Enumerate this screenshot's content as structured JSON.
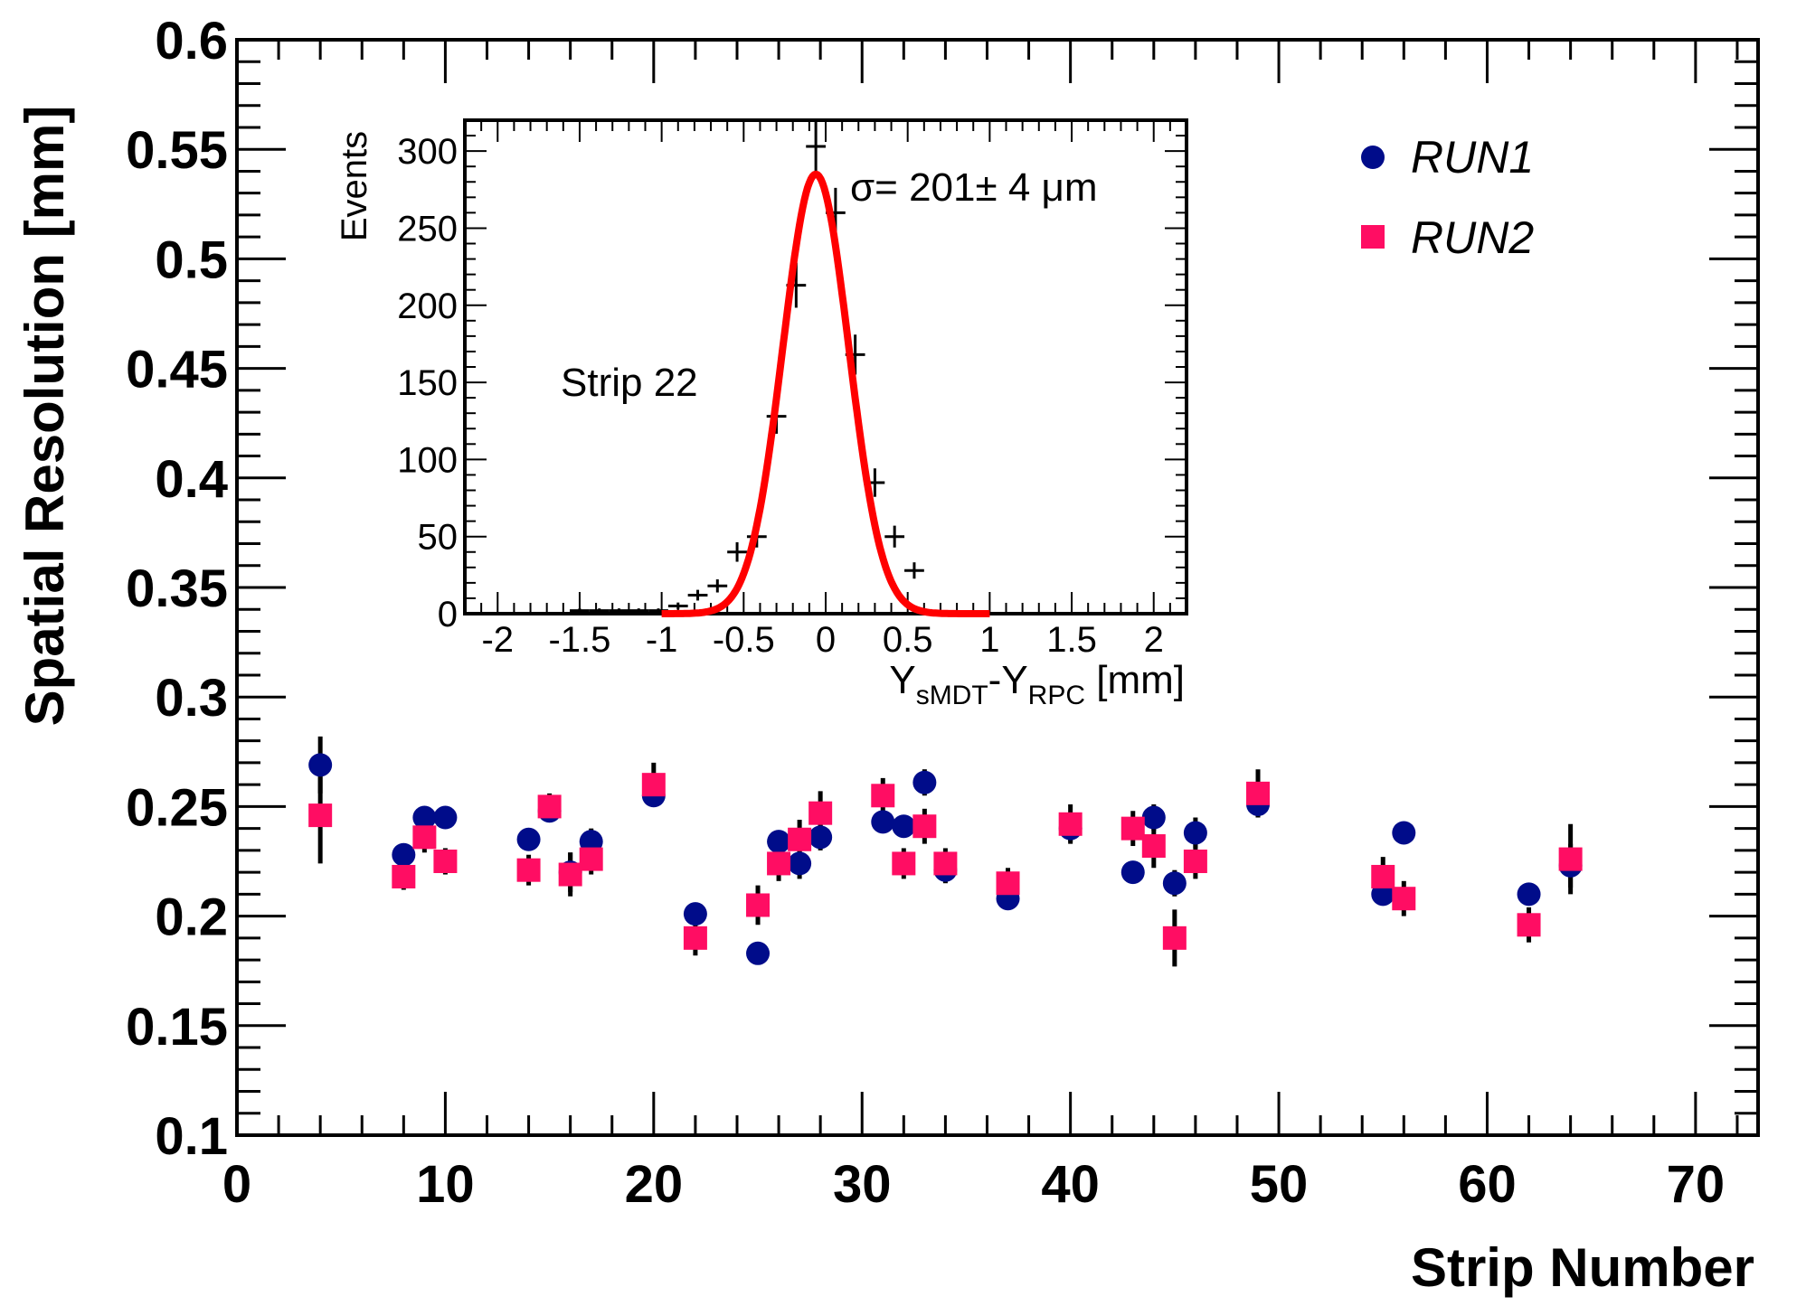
{
  "chart_data": [
    {
      "type": "scatter",
      "xlabel": "Strip Number",
      "ylabel": "Spatial Resolution [mm]",
      "xlim": [
        0,
        73
      ],
      "ylim": [
        0.1,
        0.6
      ],
      "x_ticks": [
        0,
        10,
        20,
        30,
        40,
        50,
        60,
        70
      ],
      "x_tick_labels": [
        "0",
        "10",
        "20",
        "30",
        "40",
        "50",
        "60",
        "70"
      ],
      "y_ticks": [
        0.1,
        0.15,
        0.2,
        0.25,
        0.3,
        0.35,
        0.4,
        0.45,
        0.5,
        0.55,
        0.6
      ],
      "y_tick_labels": [
        "0.1",
        "0.15",
        "0.2",
        "0.25",
        "0.3",
        "0.35",
        "0.4",
        "0.45",
        "0.5",
        "0.55",
        "0.6"
      ],
      "legend_position": "top-right",
      "series": [
        {
          "name": "RUN1",
          "marker": "circle",
          "color": "#000c8a",
          "x": [
            4,
            8,
            9,
            10,
            14,
            15,
            16,
            17,
            20,
            22,
            25,
            26,
            27,
            28,
            31,
            32,
            33,
            34,
            37,
            40,
            43,
            44,
            45,
            46,
            49,
            55,
            56,
            62,
            64
          ],
          "y": [
            0.269,
            0.228,
            0.245,
            0.245,
            0.235,
            0.248,
            0.22,
            0.234,
            0.255,
            0.201,
            0.183,
            0.234,
            0.224,
            0.236,
            0.243,
            0.241,
            0.261,
            0.221,
            0.208,
            0.24,
            0.22,
            0.245,
            0.215,
            0.238,
            0.251,
            0.21,
            0.238,
            0.21,
            0.223
          ],
          "err": [
            0.013,
            0.005,
            0.005,
            0.005,
            0.005,
            0.005,
            0.009,
            0.006,
            0.005,
            0.004,
            0.003,
            0.005,
            0.007,
            0.006,
            0.005,
            0.005,
            0.006,
            0.006,
            0.005,
            0.006,
            0.005,
            0.006,
            0.006,
            0.007,
            0.006,
            0.005,
            0.005,
            0.005,
            0.01
          ]
        },
        {
          "name": "RUN2",
          "marker": "square",
          "color": "#ff0d63",
          "x": [
            4,
            8,
            9,
            10,
            14,
            15,
            16,
            17,
            20,
            22,
            25,
            26,
            27,
            28,
            31,
            32,
            33,
            34,
            37,
            40,
            43,
            44,
            45,
            46,
            49,
            55,
            56,
            62,
            64
          ],
          "y": [
            0.246,
            0.218,
            0.236,
            0.225,
            0.221,
            0.25,
            0.219,
            0.226,
            0.26,
            0.19,
            0.205,
            0.224,
            0.235,
            0.247,
            0.255,
            0.224,
            0.241,
            0.224,
            0.215,
            0.242,
            0.24,
            0.232,
            0.19,
            0.225,
            0.256,
            0.218,
            0.208,
            0.196,
            0.226
          ],
          "err": [
            0.022,
            0.006,
            0.007,
            0.006,
            0.007,
            0.006,
            0.01,
            0.007,
            0.01,
            0.008,
            0.009,
            0.008,
            0.009,
            0.01,
            0.008,
            0.007,
            0.008,
            0.007,
            0.007,
            0.009,
            0.008,
            0.01,
            0.013,
            0.008,
            0.011,
            0.009,
            0.008,
            0.008,
            0.016
          ]
        }
      ]
    },
    {
      "type": "line",
      "subtype": "histogram-with-gaussian-fit",
      "xlabel_main": "Y",
      "xlabel_sub1": "sMDT",
      "xlabel_dash": "-Y",
      "xlabel_sub2": "RPC",
      "xlabel_unit": " [mm]",
      "ylabel": "Events",
      "annotation": "Strip 22",
      "fit_label": "σ= 201± 4 μm",
      "fit": {
        "mean": -0.06,
        "sigma": 0.201,
        "amplitude": 285
      },
      "xlim": [
        -2.2,
        2.2
      ],
      "ylim": [
        0,
        320
      ],
      "x_ticks": [
        -2,
        -1.5,
        -1,
        -0.5,
        0,
        0.5,
        1,
        1.5,
        2
      ],
      "x_tick_labels": [
        "-2",
        "-1.5",
        "-1",
        "-0.5",
        "0",
        "0.5",
        "1",
        "1.5",
        "2"
      ],
      "y_ticks": [
        0,
        50,
        100,
        150,
        200,
        250,
        300
      ],
      "y_tick_labels": [
        "0",
        "50",
        "100",
        "150",
        "200",
        "250",
        "300"
      ],
      "bin_width": 0.12,
      "histogram": {
        "x": [
          -1.5,
          -1.38,
          -1.26,
          -1.14,
          -1.02,
          -0.9,
          -0.78,
          -0.66,
          -0.54,
          -0.42,
          -0.3,
          -0.18,
          -0.06,
          0.06,
          0.18,
          0.3,
          0.42,
          0.54
        ],
        "y": [
          2,
          2,
          2,
          2,
          2,
          5,
          12,
          18,
          40,
          50,
          128,
          213,
          303,
          260,
          168,
          85,
          50,
          28
        ]
      },
      "fit_color": "#ff0000"
    }
  ]
}
